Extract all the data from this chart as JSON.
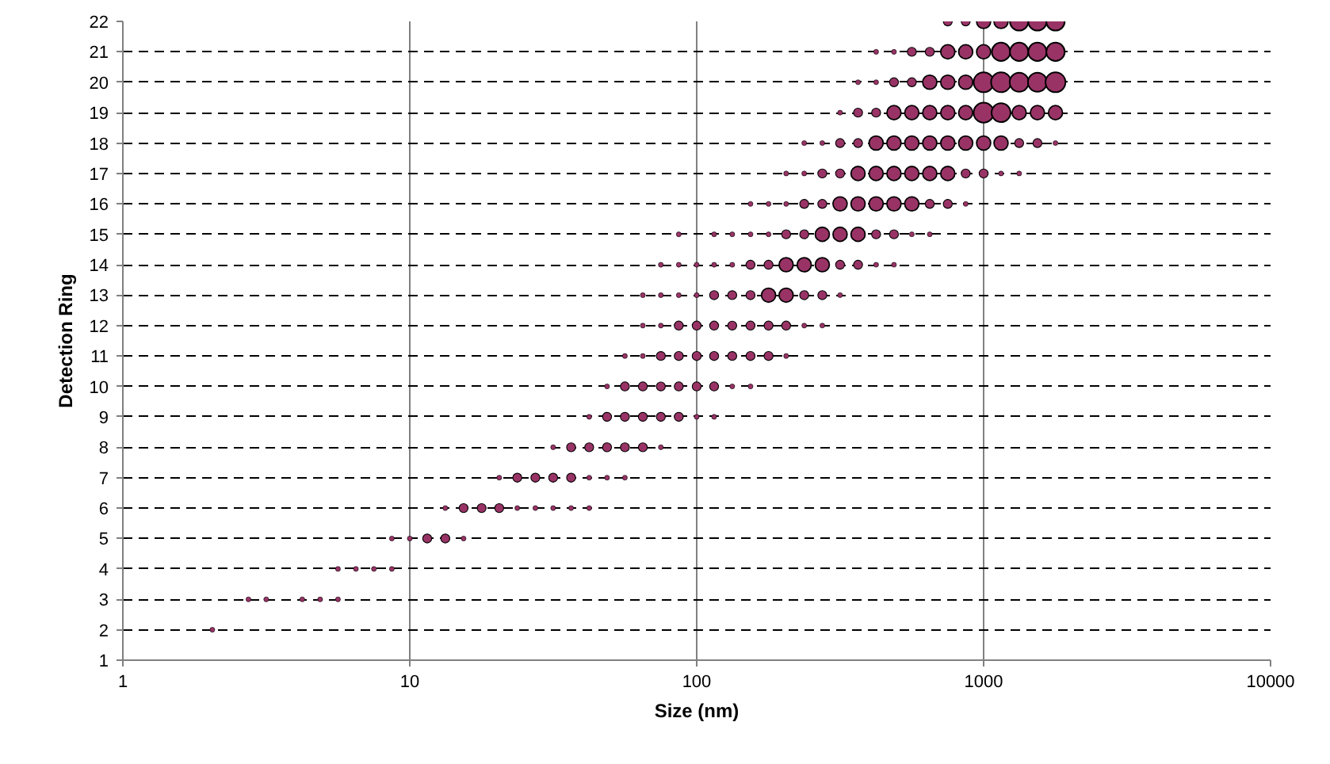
{
  "chart_data": {
    "type": "bubble",
    "xlabel": "Size (nm)",
    "ylabel": "Detection Ring",
    "log": "x",
    "xlim": [
      1,
      10000
    ],
    "xticks": [
      1,
      10,
      100,
      1000,
      10000
    ],
    "ylim": [
      1,
      22
    ],
    "yticks": [
      1,
      2,
      3,
      4,
      5,
      6,
      7,
      8,
      9,
      10,
      11,
      12,
      13,
      14,
      15,
      16,
      17,
      18,
      19,
      20,
      21,
      22
    ],
    "grid": true,
    "marker": "circle",
    "series": [
      {
        "color": "#993366",
        "x": [
          2.05
        ],
        "values": [
          2
        ],
        "sizes": [
          0.06
        ]
      },
      {
        "color": "#993366",
        "x": [
          2.74,
          3.16,
          4.22,
          4.87,
          5.62
        ],
        "values": [
          3,
          3,
          3,
          3,
          3
        ],
        "sizes": [
          0.06,
          0.06,
          0.06,
          0.06,
          0.06
        ]
      },
      {
        "color": "#993366",
        "x": [
          5.62,
          6.49,
          7.5,
          8.66
        ],
        "values": [
          4,
          4,
          4,
          4
        ],
        "sizes": [
          0.06,
          0.06,
          0.06,
          0.06
        ]
      },
      {
        "color": "#993366",
        "x": [
          8.66,
          10,
          11.5,
          13.3,
          15.4
        ],
        "values": [
          5,
          5,
          5,
          5,
          5
        ],
        "sizes": [
          0.06,
          0.06,
          0.2,
          0.2,
          0.06
        ]
      },
      {
        "color": "#993366",
        "x": [
          13.3,
          15.4,
          17.8,
          20.5,
          23.7,
          27.4,
          31.6,
          36.5,
          42.2
        ],
        "values": [
          6,
          6,
          6,
          6,
          6,
          6,
          6,
          6,
          6
        ],
        "sizes": [
          0.06,
          0.2,
          0.2,
          0.2,
          0.06,
          0.06,
          0.06,
          0.06,
          0.06
        ]
      },
      {
        "color": "#993366",
        "x": [
          20.5,
          23.7,
          27.4,
          31.6,
          36.5,
          42.2,
          48.7,
          56.2
        ],
        "values": [
          7,
          7,
          7,
          7,
          7,
          7,
          7,
          7
        ],
        "sizes": [
          0.06,
          0.2,
          0.2,
          0.2,
          0.2,
          0.06,
          0.06,
          0.06
        ]
      },
      {
        "color": "#993366",
        "x": [
          31.6,
          36.5,
          42.2,
          48.7,
          56.2,
          64.9,
          75
        ],
        "values": [
          8,
          8,
          8,
          8,
          8,
          8,
          8
        ],
        "sizes": [
          0.06,
          0.2,
          0.2,
          0.2,
          0.2,
          0.2,
          0.06
        ]
      },
      {
        "color": "#993366",
        "x": [
          42.2,
          48.7,
          56.2,
          64.9,
          75,
          86.6,
          100,
          115
        ],
        "values": [
          9,
          9,
          9,
          9,
          9,
          9,
          9,
          9
        ],
        "sizes": [
          0.06,
          0.2,
          0.2,
          0.2,
          0.2,
          0.2,
          0.06,
          0.06
        ]
      },
      {
        "color": "#993366",
        "x": [
          48.7,
          56.2,
          64.9,
          75,
          86.6,
          100,
          115,
          133,
          154
        ],
        "values": [
          10,
          10,
          10,
          10,
          10,
          10,
          10,
          10,
          10
        ],
        "sizes": [
          0.06,
          0.2,
          0.2,
          0.2,
          0.2,
          0.2,
          0.2,
          0.06,
          0.06
        ]
      },
      {
        "color": "#993366",
        "x": [
          56.2,
          64.9,
          75,
          86.6,
          100,
          115,
          133,
          154,
          178,
          205
        ],
        "values": [
          11,
          11,
          11,
          11,
          11,
          11,
          11,
          11,
          11,
          11
        ],
        "sizes": [
          0.06,
          0.06,
          0.2,
          0.2,
          0.2,
          0.2,
          0.2,
          0.2,
          0.2,
          0.06
        ]
      },
      {
        "color": "#993366",
        "x": [
          64.9,
          75,
          86.6,
          100,
          115,
          133,
          154,
          178,
          205,
          237,
          274
        ],
        "values": [
          12,
          12,
          12,
          12,
          12,
          12,
          12,
          12,
          12,
          12,
          12
        ],
        "sizes": [
          0.06,
          0.06,
          0.2,
          0.2,
          0.2,
          0.2,
          0.2,
          0.2,
          0.2,
          0.06,
          0.06
        ]
      },
      {
        "color": "#993366",
        "x": [
          64.9,
          75,
          86.6,
          100,
          115,
          133,
          154,
          178,
          205,
          237,
          274,
          316
        ],
        "values": [
          13,
          13,
          13,
          13,
          13,
          13,
          13,
          13,
          13,
          13,
          13,
          13
        ],
        "sizes": [
          0.06,
          0.06,
          0.06,
          0.06,
          0.2,
          0.2,
          0.2,
          0.5,
          0.5,
          0.2,
          0.2,
          0.06
        ]
      },
      {
        "color": "#993366",
        "x": [
          75,
          86.6,
          100,
          115,
          133,
          154,
          178,
          205,
          237,
          274,
          316,
          365,
          422,
          487
        ],
        "values": [
          14,
          14,
          14,
          14,
          14,
          14,
          14,
          14,
          14,
          14,
          14,
          14,
          14,
          14
        ],
        "sizes": [
          0.06,
          0.06,
          0.06,
          0.06,
          0.06,
          0.2,
          0.2,
          0.5,
          0.5,
          0.5,
          0.2,
          0.2,
          0.06,
          0.06
        ]
      },
      {
        "color": "#993366",
        "x": [
          86.6,
          115,
          133,
          154,
          178,
          205,
          237,
          274,
          316,
          365,
          422,
          487,
          562,
          649
        ],
        "values": [
          15,
          15,
          15,
          15,
          15,
          15,
          15,
          15,
          15,
          15,
          15,
          15,
          15,
          15
        ],
        "sizes": [
          0.06,
          0.06,
          0.06,
          0.06,
          0.06,
          0.2,
          0.2,
          0.5,
          0.5,
          0.5,
          0.2,
          0.2,
          0.06,
          0.06
        ]
      },
      {
        "color": "#993366",
        "x": [
          154,
          178,
          205,
          237,
          274,
          316,
          365,
          422,
          487,
          562,
          649,
          750,
          866
        ],
        "values": [
          16,
          16,
          16,
          16,
          16,
          16,
          16,
          16,
          16,
          16,
          16,
          16,
          16
        ],
        "sizes": [
          0.06,
          0.06,
          0.06,
          0.2,
          0.2,
          0.5,
          0.5,
          0.5,
          0.5,
          0.5,
          0.2,
          0.2,
          0.06
        ]
      },
      {
        "color": "#993366",
        "x": [
          205,
          237,
          274,
          316,
          365,
          422,
          487,
          562,
          649,
          750,
          866,
          1000,
          1150,
          1330
        ],
        "values": [
          17,
          17,
          17,
          17,
          17,
          17,
          17,
          17,
          17,
          17,
          17,
          17,
          17,
          17
        ],
        "sizes": [
          0.06,
          0.06,
          0.2,
          0.2,
          0.5,
          0.5,
          0.5,
          0.5,
          0.5,
          0.5,
          0.2,
          0.2,
          0.06,
          0.06
        ]
      },
      {
        "color": "#993366",
        "x": [
          237,
          274,
          316,
          365,
          422,
          487,
          562,
          649,
          750,
          866,
          1000,
          1150,
          1330,
          1540,
          1780
        ],
        "values": [
          18,
          18,
          18,
          18,
          18,
          18,
          18,
          18,
          18,
          18,
          18,
          18,
          18,
          18,
          18
        ],
        "sizes": [
          0.06,
          0.06,
          0.2,
          0.2,
          0.5,
          0.5,
          0.5,
          0.5,
          0.5,
          0.5,
          0.5,
          0.5,
          0.2,
          0.2,
          0.06
        ]
      },
      {
        "color": "#993366",
        "x": [
          316,
          365,
          422,
          487,
          562,
          649,
          750,
          866,
          1000,
          1150,
          1330,
          1540,
          1780
        ],
        "values": [
          19,
          19,
          19,
          19,
          19,
          19,
          19,
          19,
          19,
          19,
          19,
          19,
          19
        ],
        "sizes": [
          0.06,
          0.2,
          0.2,
          0.5,
          0.5,
          0.5,
          0.5,
          0.5,
          1,
          0.9,
          0.5,
          0.5,
          0.5
        ]
      },
      {
        "color": "#993366",
        "x": [
          365,
          422,
          487,
          562,
          649,
          750,
          866,
          1000,
          1150,
          1330,
          1540,
          1780
        ],
        "values": [
          20,
          20,
          20,
          20,
          20,
          20,
          20,
          20,
          20,
          20,
          20,
          20
        ],
        "sizes": [
          0.06,
          0.06,
          0.2,
          0.2,
          0.5,
          0.5,
          0.5,
          1,
          1,
          0.9,
          0.9,
          1
        ]
      },
      {
        "color": "#993366",
        "x": [
          422,
          487,
          562,
          649,
          750,
          866,
          1000,
          1150,
          1330,
          1540,
          1780
        ],
        "values": [
          21,
          21,
          21,
          21,
          21,
          21,
          21,
          21,
          21,
          21,
          21
        ],
        "sizes": [
          0.06,
          0.06,
          0.2,
          0.2,
          0.5,
          0.5,
          0.5,
          0.85,
          0.85,
          0.85,
          0.85
        ]
      },
      {
        "color": "#993366",
        "x": [
          750,
          866,
          1000,
          1150,
          1330,
          1540,
          1780
        ],
        "values": [
          22,
          22,
          22,
          22,
          22,
          22,
          22
        ],
        "sizes": [
          0.2,
          0.2,
          0.5,
          0.5,
          0.85,
          0.85,
          0.85
        ]
      }
    ]
  }
}
